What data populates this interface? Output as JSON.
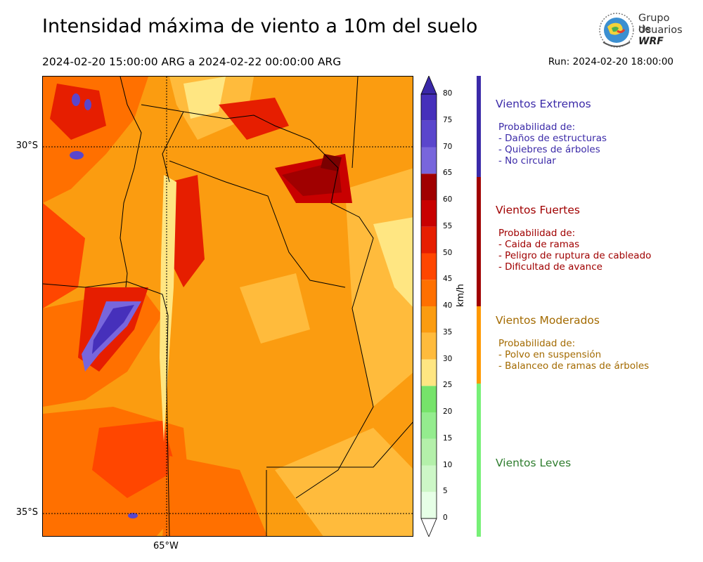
{
  "header": {
    "title": "Intensidad máxima de viento a 10m del suelo",
    "period": "2024-02-20 15:00:00 ARG  a  2024-02-22 00:00:00 ARG",
    "run": "Run: 2024-02-20 18:00:00"
  },
  "logo": {
    "line1": "Grupo de",
    "line2": "Usuarios",
    "line3": "WRF"
  },
  "map": {
    "lat_labels": [
      "30°S",
      "35°S"
    ],
    "lon_labels": [
      "65°W"
    ],
    "field": "max 10m wind speed"
  },
  "colorbar": {
    "unit": "km/h",
    "ticks": [
      "0",
      "5",
      "10",
      "15",
      "20",
      "25",
      "30",
      "35",
      "40",
      "45",
      "50",
      "55",
      "60",
      "65",
      "70",
      "75",
      "80"
    ],
    "colors": [
      "#e6ffe6",
      "#cdf7c7",
      "#b4f0aa",
      "#94ec8e",
      "#76e36a",
      "#ffe682",
      "#ffbb3c",
      "#fb9c10",
      "#ff7000",
      "#ff4600",
      "#e61e00",
      "#c80000",
      "#a00000",
      "#7866dc",
      "#5a46cc",
      "#4630bb",
      "#3a28a8"
    ]
  },
  "categories": [
    {
      "title": "Vientos Extremos",
      "color": "#3b2aa8",
      "intro": "Probabilidad de:",
      "items": [
        "- Daños de estructuras",
        "- Quiebres de árboles",
        "- No circular"
      ]
    },
    {
      "title": "Vientos Fuertes",
      "color": "#a00000",
      "intro": "Probabilidad de:",
      "items": [
        "- Caida de ramas",
        "- Peligro de ruptura de cableado",
        "- Dificultad de avance"
      ]
    },
    {
      "title": "Vientos Moderados",
      "color": "#a36a00",
      "intro": "Probabilidad de:",
      "items": [
        "- Polvo en suspensión",
        "- Balanceo de ramas de árboles"
      ]
    },
    {
      "title": "Vientos Leves",
      "color": "#2e7d2e"
    }
  ],
  "category_bar_colors": [
    "#3b2aa8",
    "#a00000",
    "#ff9900",
    "#77f077"
  ]
}
